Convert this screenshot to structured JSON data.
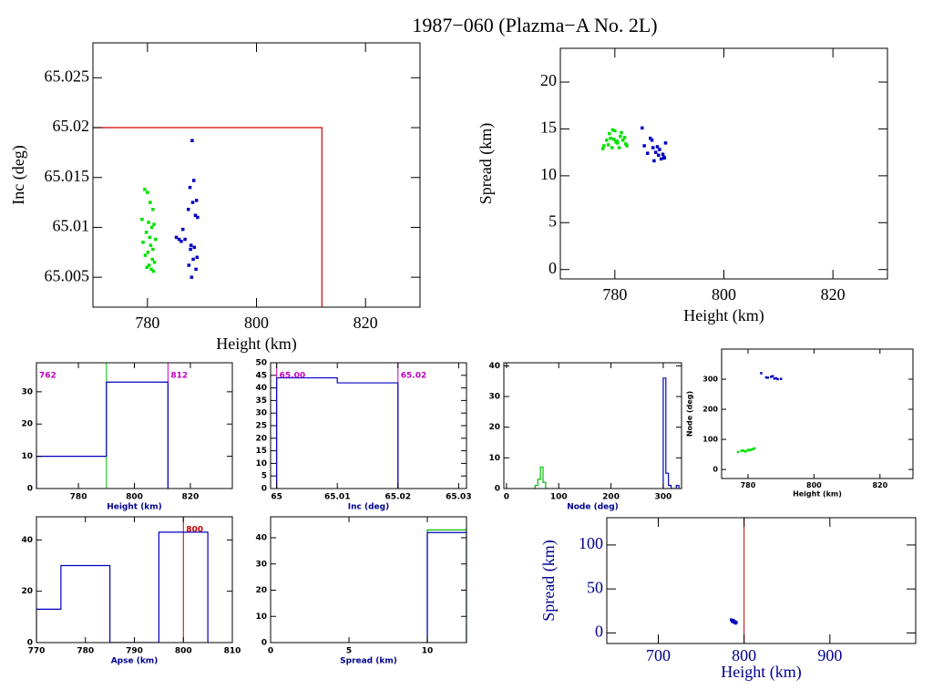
{
  "title": "1987−060 (Plazma−A No. 2L)",
  "chart_data": [
    {
      "type": "scatter",
      "xlabel": "Height (km)",
      "ylabel": "Inc (deg)",
      "xlim": [
        770,
        830
      ],
      "ylim": [
        65.002,
        65.0285
      ],
      "xticks": [
        780,
        800,
        820
      ],
      "yticks": [
        65.005,
        65.01,
        65.015,
        65.02,
        65.025
      ],
      "limits": {
        "x": 812,
        "y": 65.02,
        "color": "#d00000"
      },
      "series": [
        {
          "color": "#00e000",
          "x": [
            779.5,
            780,
            780.5,
            781,
            779,
            780.2,
            781.2,
            780.8,
            779.8,
            780.4,
            781.5,
            779.2,
            780.6,
            781,
            780.1,
            779.6,
            780.9,
            781.3,
            780.3,
            779.9,
            780.7,
            781.1
          ],
          "values": [
            65.0138,
            65.0135,
            65.0125,
            65.0118,
            65.0108,
            65.0105,
            65.0103,
            65.01,
            65.0095,
            65.009,
            65.0088,
            65.0085,
            65.0082,
            65.0078,
            65.0075,
            65.0072,
            65.0068,
            65.0065,
            65.0062,
            65.006,
            65.0058,
            65.0056
          ]
        },
        {
          "color": "#0000c0",
          "x": [
            788.2,
            788.5,
            787.8,
            789,
            788.3,
            787.5,
            788.8,
            789.2,
            786.5,
            785.3,
            785.8,
            786.2,
            788,
            788.6,
            787.9,
            789.1,
            788.4,
            787.6,
            788.9,
            788.1,
            786.9
          ],
          "values": [
            65.0187,
            65.0147,
            65.014,
            65.0127,
            65.0125,
            65.0118,
            65.0112,
            65.011,
            65.0098,
            65.009,
            65.0088,
            65.0086,
            65.0082,
            65.008,
            65.0078,
            65.007,
            65.0068,
            65.0062,
            65.0058,
            65.005,
            65.0088
          ]
        }
      ]
    },
    {
      "type": "scatter",
      "xlabel": "Height (km)",
      "ylabel": "Spread (km)",
      "xlim": [
        770,
        830
      ],
      "ylim": [
        -1,
        23.6
      ],
      "xticks": [
        780,
        800,
        820
      ],
      "yticks": [
        0,
        5,
        10,
        15,
        20
      ],
      "series": [
        {
          "color": "#00e000",
          "x": [
            778,
            778.5,
            779,
            779.5,
            780,
            780.5,
            781,
            781.5,
            782,
            779.2,
            780.2,
            781.2,
            778.8,
            779.8,
            780.8,
            781.8,
            780.4,
            779.6,
            782.2,
            777.8
          ],
          "values": [
            13.2,
            13.8,
            14.5,
            13,
            14.8,
            13.5,
            14.2,
            13.8,
            13.4,
            14,
            13.6,
            14.6,
            13.3,
            13.9,
            13,
            14.1,
            13.7,
            14.9,
            13.2,
            12.9
          ]
        },
        {
          "color": "#0000c0",
          "x": [
            785,
            785.4,
            786,
            786.5,
            787,
            787.5,
            788,
            788.5,
            789,
            789.3,
            787.2,
            788.2,
            786.8,
            788.8,
            787.8,
            789.1
          ],
          "values": [
            15.1,
            13.2,
            12.4,
            14,
            13,
            12.5,
            12.2,
            11.8,
            12,
            13.5,
            11.6,
            12.8,
            13.8,
            12.3,
            13.1,
            11.9
          ]
        }
      ]
    },
    {
      "type": "histogram",
      "xlabel": "Height (km)",
      "label_color": "#000090",
      "xlim": [
        765,
        835
      ],
      "ylim": [
        0,
        39
      ],
      "xticks": [
        780,
        800,
        820
      ],
      "yticks": [
        0,
        10,
        20,
        30
      ],
      "vlines": [
        {
          "x": 790,
          "color": "#00c000"
        },
        {
          "x": 762,
          "color": "#c000c0"
        },
        {
          "x": 812,
          "color": "#c000c0"
        }
      ],
      "series": [
        {
          "color": "#0000c0",
          "bins": [
            765,
            790,
            812
          ],
          "values": [
            10,
            33
          ]
        }
      ]
    },
    {
      "type": "histogram",
      "xlabel": "Inc (deg)",
      "label_color": "#000090",
      "xlim": [
        64.999,
        65.0313
      ],
      "ylim": [
        0,
        50
      ],
      "xticks": [
        65,
        65.01,
        65.02,
        65.03
      ],
      "yticks": [
        0,
        5,
        10,
        15,
        20,
        25,
        30,
        35,
        40,
        45,
        50
      ],
      "vlines": [
        {
          "x": 65,
          "label": "65.00",
          "color": "#c000c0"
        },
        {
          "x": 65.02,
          "label": "65.02",
          "color": "#c000c0"
        }
      ],
      "series": [
        {
          "color": "#0000c0",
          "bins": [
            65,
            65.01,
            65.02
          ],
          "values": [
            44,
            42
          ]
        }
      ]
    },
    {
      "type": "histogram",
      "xlabel": "Node (deg)",
      "label_color": "#000090",
      "xlim": [
        -5,
        335
      ],
      "ylim": [
        0,
        41
      ],
      "xticks": [
        0,
        100,
        200,
        300
      ],
      "yticks": [
        0,
        10,
        20,
        30,
        40
      ],
      "series": [
        {
          "color": "#00c000",
          "bins": [
            50,
            55,
            60,
            65,
            70,
            75,
            80
          ],
          "values": [
            0,
            1,
            3,
            7,
            2,
            0
          ]
        },
        {
          "color": "#0000c0",
          "bins": [
            300,
            305,
            310,
            315,
            320,
            325,
            330
          ],
          "values": [
            36,
            5,
            1,
            0,
            0,
            1
          ]
        }
      ]
    },
    {
      "type": "scatter",
      "xlabel": "Height (km)",
      "ylabel": "Node (deg)",
      "label_color": "#000000",
      "xlim": [
        772,
        830
      ],
      "ylim": [
        -30,
        400
      ],
      "xticks": [
        780,
        800,
        820
      ],
      "yticks": [
        0,
        100,
        200,
        300
      ],
      "series": [
        {
          "color": "#00e000",
          "x": [
            777,
            778,
            779,
            780,
            781,
            782,
            778.5,
            779.5,
            780.5,
            781.5
          ],
          "values": [
            58,
            62,
            60,
            65,
            66,
            70,
            63,
            61,
            64,
            68
          ]
        },
        {
          "color": "#0000c0",
          "x": [
            784,
            786,
            787,
            788,
            789,
            790,
            785.5,
            787.5,
            788.5
          ],
          "values": [
            320,
            305,
            308,
            302,
            300,
            301,
            306,
            310,
            303
          ]
        }
      ]
    },
    {
      "type": "histogram",
      "xlabel": "Apse (km)",
      "label_color": "#000090",
      "xlim": [
        770,
        810
      ],
      "ylim": [
        0,
        49
      ],
      "xticks": [
        770,
        780,
        790,
        800,
        810
      ],
      "yticks": [
        0,
        20,
        40
      ],
      "vlines": [
        {
          "x": 800,
          "color": "#c00000"
        }
      ],
      "series": [
        {
          "color": "#0000c0",
          "bins": [
            770,
            775,
            785,
            795,
            805
          ],
          "values": [
            13,
            30,
            0,
            43
          ]
        }
      ]
    },
    {
      "type": "histogram",
      "xlabel": "Spread (km)",
      "label_color": "#000090",
      "xlim": [
        0,
        12.5
      ],
      "ylim": [
        0,
        48
      ],
      "xticks": [
        0,
        5,
        10
      ],
      "yticks": [
        0,
        10,
        20,
        30,
        40
      ],
      "series": [
        {
          "color": "#00c000",
          "bins": [
            10,
            12.5
          ],
          "values": [
            43
          ]
        },
        {
          "color": "#0000c0",
          "bins": [
            10,
            12.5
          ],
          "values": [
            42
          ]
        }
      ]
    },
    {
      "type": "scatter",
      "xlabel": "Height (km)",
      "ylabel": "Spread (km)",
      "label_color": "#000090",
      "tick_color": "#000090",
      "xlim": [
        640,
        1000
      ],
      "ylim": [
        -12,
        131
      ],
      "xticks": [
        700,
        800,
        900
      ],
      "yticks": [
        0,
        50,
        100
      ],
      "vlines": [
        {
          "x": 800,
          "color": "#c00000"
        }
      ],
      "series": [
        {
          "color": "#0000c0",
          "x": [
            785,
            786,
            787,
            788,
            789,
            790,
            791,
            787.5,
            789.5
          ],
          "values": [
            15,
            13,
            14,
            12,
            13,
            11,
            12,
            14.5,
            12.5
          ]
        }
      ]
    }
  ]
}
